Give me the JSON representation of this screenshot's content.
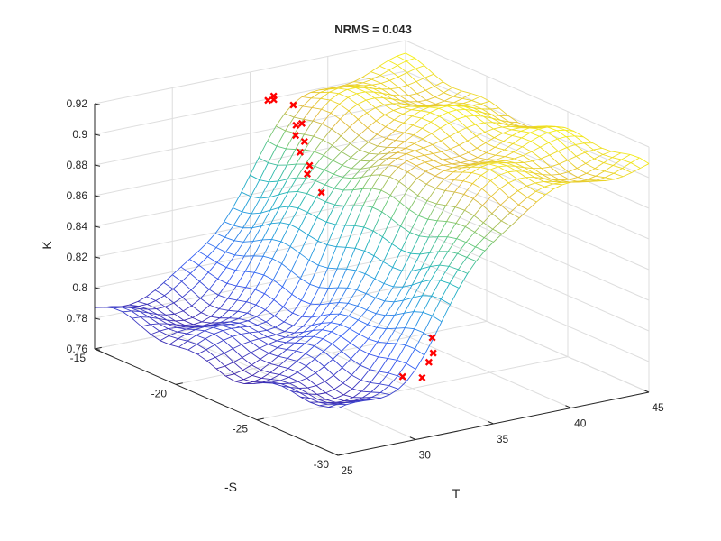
{
  "chart_data": {
    "type": "surface",
    "title": "NRMS = 0.043",
    "xlabel": "T",
    "ylabel": "-S",
    "zlabel": "K",
    "xlim": [
      25,
      45
    ],
    "ylim": [
      -30,
      -15
    ],
    "zlim": [
      0.76,
      0.92
    ],
    "x_ticks": [
      "25",
      "30",
      "35",
      "40",
      "45"
    ],
    "y_ticks": [
      "-30",
      "-25",
      "-20",
      "-15"
    ],
    "z_ticks": [
      "0.76",
      "0.78",
      "0.8",
      "0.82",
      "0.84",
      "0.86",
      "0.88",
      "0.9",
      "0.92"
    ],
    "grid": true,
    "colormap": "parula",
    "surface_model": {
      "z_low": 0.785,
      "z_high": 0.905,
      "transition_center_T": 32.5,
      "transition_slope_per_S": 0.12,
      "transition_width": 1.6
    },
    "measured_points_marker": "red-x",
    "measured_points": [
      {
        "T": 35.9,
        "S": -16.8,
        "K": 0.905
      },
      {
        "T": 34.3,
        "S": -18.5,
        "K": 0.903
      },
      {
        "T": 35.2,
        "S": -18.0,
        "K": 0.9
      },
      {
        "T": 34.8,
        "S": -18.0,
        "K": 0.893
      },
      {
        "T": 35.1,
        "S": -16.0,
        "K": 0.906
      },
      {
        "T": 35.9,
        "S": -15.6,
        "K": 0.903
      },
      {
        "T": 36.1,
        "S": -15.4,
        "K": 0.904
      },
      {
        "T": 33.8,
        "S": -19.5,
        "K": 0.898
      },
      {
        "T": 33.0,
        "S": -20.0,
        "K": 0.895
      },
      {
        "T": 31.9,
        "S": -21.5,
        "K": 0.89
      },
      {
        "T": 31.0,
        "S": -22.5,
        "K": 0.902
      },
      {
        "T": 30.2,
        "S": -24.0,
        "K": 0.893
      },
      {
        "T": 36.8,
        "S": -24.5,
        "K": 0.787
      },
      {
        "T": 35.3,
        "S": -26.0,
        "K": 0.787
      },
      {
        "T": 34.5,
        "S": -26.5,
        "K": 0.785
      },
      {
        "T": 32.5,
        "S": -28.0,
        "K": 0.786
      },
      {
        "T": 30.2,
        "S": -29.0,
        "K": 0.796
      }
    ]
  },
  "colors": {
    "axis": "#262626",
    "grid": "#dedede",
    "mesh_low": "#3e26a8",
    "mesh_mid": "#1fb5b8",
    "mesh_high": "#f9fb0e",
    "marker": "#ff0000"
  }
}
